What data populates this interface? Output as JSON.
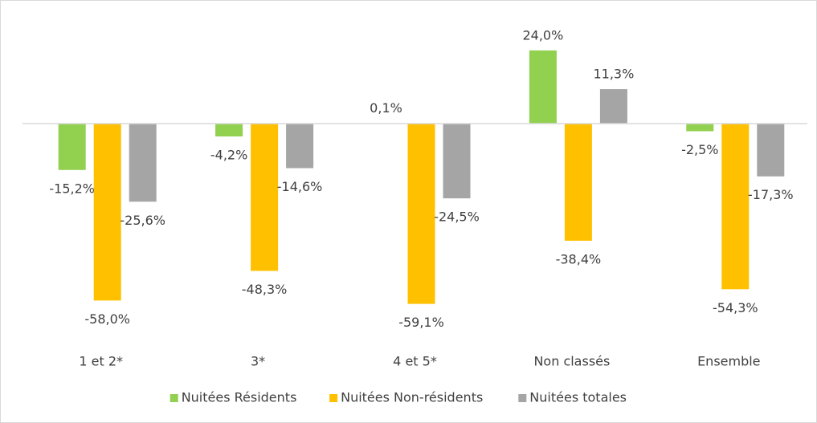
{
  "chart_data": {
    "type": "bar",
    "categories": [
      "1 et 2*",
      "3*",
      "4 et 5*",
      "Non classés",
      "Ensemble"
    ],
    "series": [
      {
        "name": "Nuitées Résidents",
        "color": "#92d050",
        "values": [
          -15.2,
          -4.2,
          0.1,
          24.0,
          -2.5
        ],
        "value_labels": [
          "-15,2%",
          "-4,2%",
          "0,1%",
          "24,0%",
          "-2,5%"
        ]
      },
      {
        "name": "Nuitées Non-résidents",
        "color": "#ffc000",
        "values": [
          -58.0,
          -48.3,
          -59.1,
          -38.4,
          -54.3
        ],
        "value_labels": [
          "-58,0%",
          "-48,3%",
          "-59,1%",
          "-38,4%",
          "-54,3%"
        ]
      },
      {
        "name": "Nuitées totales",
        "color": "#a5a5a5",
        "values": [
          -25.6,
          -14.6,
          -24.5,
          11.3,
          -17.3
        ],
        "value_labels": [
          "-25,6%",
          "-14,6%",
          "-24,5%",
          "11,3%",
          "-17,3%"
        ]
      }
    ],
    "ylim": [
      -60,
      30
    ],
    "legend": "bottom"
  }
}
